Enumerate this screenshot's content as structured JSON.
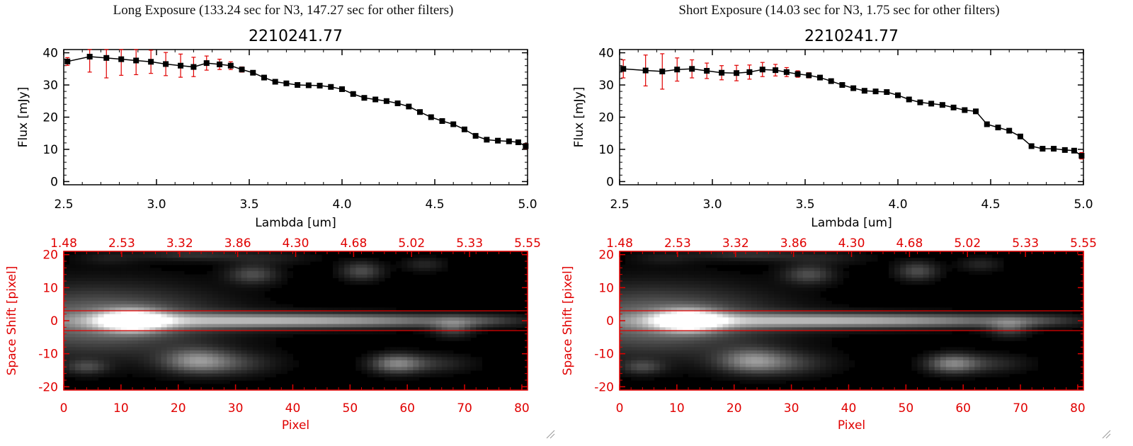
{
  "panels": [
    {
      "header": "Long Exposure (133.24 sec for N3, 147.27 sec for other filters)",
      "chart_data": [
        {
          "type": "line",
          "title": "2210241.77",
          "xlabel": "Lambda [um]",
          "ylabel": "Flux [mJy]",
          "xlim": [
            2.5,
            5.0
          ],
          "ylim": [
            -1,
            41
          ],
          "xticks": [
            "2.5",
            "3.0",
            "3.5",
            "4.0",
            "4.5",
            "5.0"
          ],
          "yticks": [
            "0",
            "10",
            "20",
            "30",
            "40"
          ],
          "series": [
            {
              "marker": "filled-square",
              "line_color": "#000000",
              "errorbar_color": "#e00000",
              "x": [
                2.52,
                2.64,
                2.73,
                2.81,
                2.89,
                2.97,
                3.05,
                3.13,
                3.2,
                3.27,
                3.34,
                3.4,
                3.46,
                3.52,
                3.58,
                3.64,
                3.7,
                3.76,
                3.82,
                3.88,
                3.94,
                4.0,
                4.06,
                4.12,
                4.18,
                4.24,
                4.3,
                4.36,
                4.42,
                4.48,
                4.54,
                4.6,
                4.66,
                4.72,
                4.78,
                4.84,
                4.9,
                4.95,
                4.99
              ],
              "y": [
                37.3,
                38.8,
                38.4,
                38.0,
                37.6,
                37.2,
                36.5,
                36.0,
                35.6,
                36.8,
                36.4,
                36.0,
                34.8,
                33.8,
                32.3,
                31.0,
                30.5,
                30.0,
                29.9,
                29.8,
                29.4,
                28.7,
                27.2,
                26.0,
                25.5,
                25.0,
                24.3,
                23.3,
                21.6,
                20.0,
                18.8,
                17.8,
                16.2,
                14.2,
                13.0,
                12.7,
                12.5,
                12.2,
                11.0
              ],
              "yerr": [
                1.2,
                4.8,
                6.2,
                5.0,
                4.4,
                3.6,
                3.6,
                3.6,
                3.0,
                2.2,
                1.6,
                1.2,
                0.8,
                0.6,
                0.5,
                0.5,
                0.5,
                0.5,
                0.5,
                0.5,
                0.5,
                0.5,
                0.5,
                0.5,
                0.5,
                0.5,
                0.5,
                0.5,
                0.5,
                0.5,
                0.5,
                0.5,
                0.5,
                0.5,
                0.5,
                0.5,
                0.5,
                0.6,
                0.8
              ]
            }
          ]
        },
        {
          "type": "heatmap",
          "xlabel": "Pixel",
          "ylabel": "Space Shift [pixel]",
          "xlim": [
            0,
            81
          ],
          "ylim": [
            -21,
            21
          ],
          "xticks": [
            "0",
            "10",
            "20",
            "30",
            "40",
            "50",
            "60",
            "70",
            "80"
          ],
          "yticks": [
            "-20",
            "-10",
            "0",
            "10",
            "20"
          ],
          "top_ticks": [
            "1.48",
            "2.53",
            "3.32",
            "3.86",
            "4.30",
            "4.68",
            "5.02",
            "5.33",
            "5.55"
          ],
          "aperture_rows": [
            3,
            -3
          ],
          "colormap": "grayscale",
          "axis_color": "#e00000",
          "sources": [
            {
              "x": 6,
              "y": 0,
              "sx": 14,
              "sy": 7,
              "v": 0.45
            },
            {
              "x": 12,
              "y": 0,
              "sx": 4,
              "sy": 2.2,
              "v": 1.0
            },
            {
              "x": 30,
              "y": 0,
              "sx": 18,
              "sy": 1.6,
              "v": 0.55
            },
            {
              "x": 55,
              "y": 0,
              "sx": 16,
              "sy": 1.4,
              "v": 0.35
            },
            {
              "x": 73,
              "y": 0,
              "sx": 4,
              "sy": 1.2,
              "v": 0.12
            },
            {
              "x": 68,
              "y": -2,
              "sx": 2.5,
              "sy": 2,
              "v": 0.3
            },
            {
              "x": 23,
              "y": -12,
              "sx": 4,
              "sy": 2.5,
              "v": 0.4
            },
            {
              "x": 28,
              "y": -13,
              "sx": 6,
              "sy": 2.5,
              "v": 0.25
            },
            {
              "x": 58,
              "y": -13,
              "sx": 3,
              "sy": 2,
              "v": 0.45
            },
            {
              "x": 64,
              "y": -13,
              "sx": 5,
              "sy": 2,
              "v": 0.18
            },
            {
              "x": 4,
              "y": -14,
              "sx": 2.5,
              "sy": 1.5,
              "v": 0.25
            },
            {
              "x": 33,
              "y": 14,
              "sx": 3,
              "sy": 2,
              "v": 0.3
            },
            {
              "x": 52,
              "y": 15,
              "sx": 2.5,
              "sy": 2,
              "v": 0.3
            },
            {
              "x": 63,
              "y": 17,
              "sx": 2.5,
              "sy": 1.5,
              "v": 0.15
            },
            {
              "x": 22,
              "y": 20,
              "sx": 6,
              "sy": 1.2,
              "v": 0.18
            },
            {
              "x": 35,
              "y": 19,
              "sx": 6,
              "sy": 1.5,
              "v": 0.12
            },
            {
              "x": 8,
              "y": 19,
              "sx": 4,
              "sy": 1.5,
              "v": 0.1
            }
          ]
        }
      ]
    },
    {
      "header": "Short Exposure (14.03 sec for N3, 1.75 sec for other filters)",
      "chart_data": [
        {
          "type": "line",
          "title": "2210241.77",
          "xlabel": "Lambda [um]",
          "ylabel": "Flux [mJy]",
          "xlim": [
            2.5,
            5.0
          ],
          "ylim": [
            -1,
            41
          ],
          "xticks": [
            "2.5",
            "3.0",
            "3.5",
            "4.0",
            "4.5",
            "5.0"
          ],
          "yticks": [
            "0",
            "10",
            "20",
            "30",
            "40"
          ],
          "series": [
            {
              "marker": "filled-square",
              "line_color": "#000000",
              "errorbar_color": "#e00000",
              "x": [
                2.52,
                2.64,
                2.73,
                2.81,
                2.89,
                2.97,
                3.05,
                3.13,
                3.2,
                3.27,
                3.34,
                3.4,
                3.46,
                3.52,
                3.58,
                3.64,
                3.7,
                3.76,
                3.82,
                3.88,
                3.94,
                4.0,
                4.06,
                4.12,
                4.18,
                4.24,
                4.3,
                4.36,
                4.42,
                4.48,
                4.54,
                4.6,
                4.66,
                4.72,
                4.78,
                4.84,
                4.9,
                4.95,
                4.99
              ],
              "y": [
                35.0,
                34.5,
                34.2,
                34.8,
                35.0,
                34.4,
                33.8,
                33.7,
                34.0,
                34.8,
                34.6,
                34.0,
                33.4,
                33.0,
                32.3,
                31.2,
                30.0,
                29.0,
                28.2,
                28.0,
                27.8,
                26.8,
                25.5,
                24.6,
                24.2,
                23.8,
                23.0,
                22.2,
                21.8,
                17.8,
                16.8,
                15.8,
                14.0,
                11.0,
                10.2,
                10.2,
                9.8,
                9.6,
                8.0
              ],
              "yerr": [
                2.8,
                4.8,
                5.5,
                3.6,
                2.8,
                2.4,
                2.2,
                2.4,
                2.2,
                2.2,
                1.8,
                1.4,
                1.0,
                0.8,
                0.6,
                0.5,
                0.5,
                0.5,
                0.5,
                0.5,
                0.5,
                0.5,
                0.5,
                0.5,
                0.5,
                0.5,
                0.5,
                0.5,
                0.5,
                0.5,
                0.5,
                0.5,
                0.5,
                0.5,
                0.5,
                0.5,
                0.5,
                0.6,
                1.0
              ]
            }
          ]
        },
        {
          "type": "heatmap",
          "xlabel": "Pixel",
          "ylabel": "Space Shift [pixel]",
          "xlim": [
            0,
            81
          ],
          "ylim": [
            -21,
            21
          ],
          "xticks": [
            "0",
            "10",
            "20",
            "30",
            "40",
            "50",
            "60",
            "70",
            "80"
          ],
          "yticks": [
            "-20",
            "-10",
            "0",
            "10",
            "20"
          ],
          "top_ticks": [
            "1.48",
            "2.53",
            "3.32",
            "3.86",
            "4.30",
            "4.68",
            "5.02",
            "5.33",
            "5.55"
          ],
          "aperture_rows": [
            3,
            -3
          ],
          "colormap": "grayscale",
          "axis_color": "#e00000",
          "sources": [
            {
              "x": 6,
              "y": 0,
              "sx": 14,
              "sy": 7,
              "v": 0.45
            },
            {
              "x": 12,
              "y": 0,
              "sx": 4,
              "sy": 2.2,
              "v": 1.0
            },
            {
              "x": 30,
              "y": 0,
              "sx": 18,
              "sy": 1.6,
              "v": 0.55
            },
            {
              "x": 55,
              "y": 0,
              "sx": 16,
              "sy": 1.4,
              "v": 0.35
            },
            {
              "x": 73,
              "y": 0,
              "sx": 4,
              "sy": 1.2,
              "v": 0.12
            },
            {
              "x": 68,
              "y": -2,
              "sx": 2.5,
              "sy": 2,
              "v": 0.3
            },
            {
              "x": 23,
              "y": -12,
              "sx": 4,
              "sy": 2.5,
              "v": 0.4
            },
            {
              "x": 28,
              "y": -13,
              "sx": 6,
              "sy": 2.5,
              "v": 0.25
            },
            {
              "x": 58,
              "y": -13,
              "sx": 3,
              "sy": 2,
              "v": 0.45
            },
            {
              "x": 64,
              "y": -13,
              "sx": 5,
              "sy": 2,
              "v": 0.18
            },
            {
              "x": 4,
              "y": -14,
              "sx": 2.5,
              "sy": 1.5,
              "v": 0.25
            },
            {
              "x": 33,
              "y": 14,
              "sx": 3,
              "sy": 2,
              "v": 0.3
            },
            {
              "x": 52,
              "y": 15,
              "sx": 2.5,
              "sy": 2,
              "v": 0.3
            },
            {
              "x": 63,
              "y": 17,
              "sx": 2.5,
              "sy": 1.5,
              "v": 0.15
            },
            {
              "x": 22,
              "y": 20,
              "sx": 6,
              "sy": 1.2,
              "v": 0.18
            },
            {
              "x": 35,
              "y": 19,
              "sx": 6,
              "sy": 1.5,
              "v": 0.12
            },
            {
              "x": 8,
              "y": 19,
              "sx": 4,
              "sy": 1.5,
              "v": 0.1
            }
          ]
        }
      ]
    }
  ]
}
